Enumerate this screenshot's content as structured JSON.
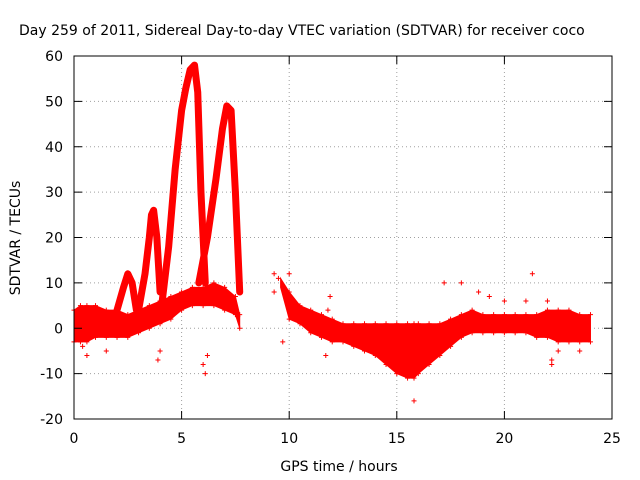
{
  "chart_data": {
    "type": "scatter",
    "title": "Day 259 of 2011, Sidereal Day-to-day VTEC variation (SDTVAR) for receiver coco",
    "xlabel": "GPS time / hours",
    "ylabel": "SDTVAR / TECUs",
    "xlim": [
      0,
      25
    ],
    "ylim": [
      -20,
      60
    ],
    "xticks": [
      0,
      5,
      10,
      15,
      20,
      25
    ],
    "yticks": [
      -20,
      -10,
      0,
      10,
      20,
      30,
      40,
      50,
      60
    ],
    "grid": true,
    "marker": "+",
    "colors": {
      "series": "#ff0000",
      "grid": "#a0a0a0",
      "axis": "#000000"
    },
    "series": [
      {
        "name": "SDTVAR",
        "band_x": [
          0.0,
          0.3,
          0.6,
          1.0,
          1.5,
          2.0,
          2.5,
          3.0,
          3.5,
          4.0,
          4.5,
          5.0,
          5.5,
          6.0,
          6.5,
          7.0,
          7.5,
          7.7,
          9.6,
          10.0,
          10.5,
          11.0,
          11.5,
          12.0,
          12.5,
          13.0,
          13.5,
          14.0,
          14.5,
          15.0,
          15.5,
          15.8,
          16.0,
          16.5,
          17.0,
          17.5,
          18.0,
          18.5,
          19.0,
          19.5,
          20.0,
          20.5,
          21.0,
          21.5,
          22.0,
          22.5,
          23.0,
          23.5,
          24.0
        ],
        "band_upper": [
          4,
          5,
          5,
          5,
          4,
          4,
          3,
          4,
          5,
          6,
          7,
          8,
          9,
          9,
          10,
          9,
          7,
          3,
          11,
          8,
          5,
          4,
          3,
          2,
          1,
          1,
          1,
          1,
          1,
          1,
          1,
          1,
          1,
          1,
          1,
          2,
          3,
          4,
          3,
          3,
          3,
          3,
          3,
          3,
          4,
          4,
          4,
          3,
          3
        ],
        "band_lower": [
          -3,
          -3,
          -3,
          -2,
          -2,
          -2,
          -2,
          -1,
          0,
          1,
          2,
          4,
          5,
          5,
          5,
          4,
          3,
          0,
          9,
          2,
          1,
          -1,
          -2,
          -3,
          -3,
          -4,
          -5,
          -6,
          -8,
          -10,
          -11,
          -11,
          -10,
          -8,
          -6,
          -4,
          -2,
          -1,
          -1,
          -1,
          -1,
          -1,
          -1,
          -2,
          -2,
          -3,
          -3,
          -3,
          -3
        ],
        "peaks": [
          {
            "x": [
              2.0,
              2.3,
              2.5,
              2.7,
              2.9
            ],
            "y": [
              4,
              9,
              12,
              10,
              4
            ]
          },
          {
            "x": [
              3.0,
              3.3,
              3.5,
              3.6,
              3.7,
              3.85,
              4.0
            ],
            "y": [
              4,
              12,
              20,
              25,
              26,
              20,
              8
            ]
          },
          {
            "x": [
              4.1,
              4.4,
              4.7,
              5.0,
              5.2,
              5.4,
              5.6,
              5.75,
              5.9,
              6.1
            ],
            "y": [
              6,
              18,
              35,
              48,
              53,
              57,
              58,
              52,
              30,
              10
            ]
          },
          {
            "x": [
              5.8,
              6.2,
              6.6,
              6.9,
              7.1,
              7.3,
              7.5,
              7.7
            ],
            "y": [
              10,
              20,
              33,
              44,
              49,
              48,
              30,
              8
            ]
          }
        ],
        "outliers": [
          [
            0.4,
            -4
          ],
          [
            0.6,
            -6
          ],
          [
            1.5,
            -5
          ],
          [
            3.9,
            -7
          ],
          [
            4.0,
            -5
          ],
          [
            6.0,
            -8
          ],
          [
            6.1,
            -10
          ],
          [
            6.2,
            -6
          ],
          [
            9.3,
            12
          ],
          [
            9.5,
            11
          ],
          [
            9.3,
            8
          ],
          [
            9.7,
            -3
          ],
          [
            10.0,
            12
          ],
          [
            11.7,
            -6
          ],
          [
            11.9,
            7
          ],
          [
            11.8,
            4
          ],
          [
            15.8,
            -16
          ],
          [
            17.2,
            10
          ],
          [
            18.0,
            10
          ],
          [
            18.8,
            8
          ],
          [
            19.3,
            7
          ],
          [
            20.0,
            6
          ],
          [
            21.0,
            6
          ],
          [
            21.3,
            12
          ],
          [
            22.0,
            6
          ],
          [
            22.2,
            -7
          ],
          [
            22.2,
            -8
          ],
          [
            22.5,
            -5
          ],
          [
            23.5,
            -5
          ]
        ]
      }
    ]
  }
}
